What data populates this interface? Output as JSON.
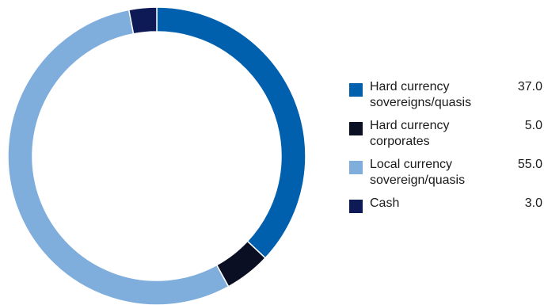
{
  "chart_data": {
    "type": "pie",
    "donut": true,
    "categories": [
      "Hard currency sovereigns/quasis",
      "Hard currency corporates",
      "Local currency sovereign/quasis",
      "Cash"
    ],
    "label_lines": [
      [
        "Hard currency",
        "sovereigns/quasis"
      ],
      [
        "Hard currency",
        "corporates"
      ],
      [
        "Local currency",
        "sovereign/quasis"
      ],
      [
        "Cash"
      ]
    ],
    "values": [
      37.0,
      5.0,
      55.0,
      3.0
    ],
    "value_labels": [
      "37.0",
      "5.0",
      "55.0",
      "3.0"
    ],
    "colors": [
      "#0060AE",
      "#0A0F24",
      "#7FAEDD",
      "#0E1A55"
    ],
    "legend_position": "right"
  }
}
